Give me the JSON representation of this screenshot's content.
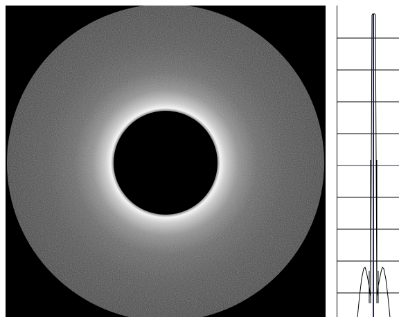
{
  "viewer": {
    "image_kind": "diffraction-ring-image",
    "profile_kind": "radial-intensity-profile"
  },
  "colors": {
    "background": "#000000",
    "ring_glow": "#ffffff",
    "disk_gray": "#3a3a3a",
    "profile_bg": "#ffffff",
    "profile_grid": "#000000",
    "profile_line": "#000000",
    "profile_highlight": "#1a1f8c"
  }
}
